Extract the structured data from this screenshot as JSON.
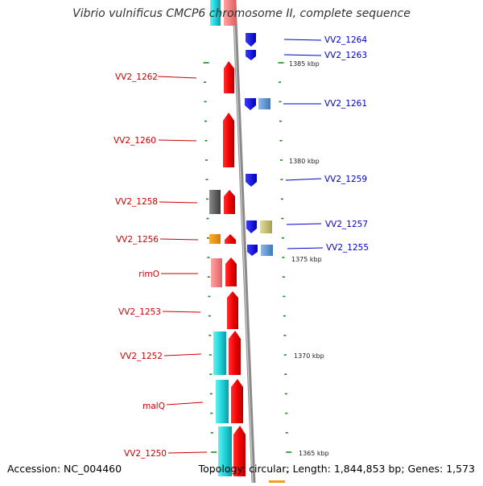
{
  "title": "Vibrio vulnificus CMCP6 chromosome II, complete sequence",
  "accession": "Accession: NC_004460",
  "summary": "Topology: circular; Length: 1,844,853 bp; Genes: 1,573",
  "colors": {
    "left_label": "#cc0000",
    "right_label": "#0000cc",
    "scale_label": "#222222",
    "tick": "#1a8a1a",
    "backbone": "#7a7a7a"
  },
  "scale_labels": [
    "1385 kbp",
    "1380 kbp",
    "1375 kbp",
    "1370 kbp",
    "1365 kbp"
  ],
  "left_genes": [
    "VV2_1262",
    "VV2_1260",
    "VV2_1258",
    "VV2_1256",
    "rimO",
    "VV2_1253",
    "VV2_1252",
    "malQ",
    "VV2_1250"
  ],
  "right_genes": [
    "VV2_1264",
    "VV2_1263",
    "VV2_1261",
    "VV2_1259",
    "VV2_1257",
    "VV2_1255"
  ]
}
